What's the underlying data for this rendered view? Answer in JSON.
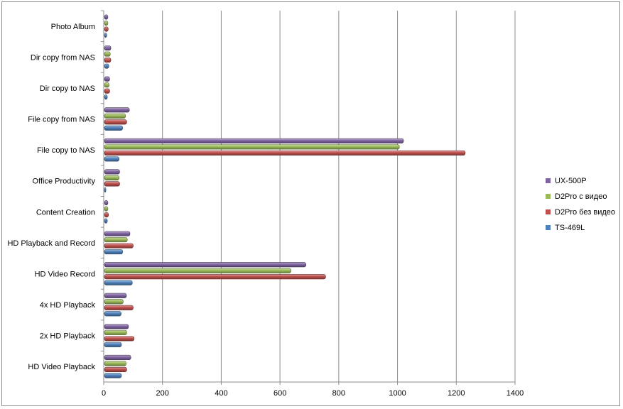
{
  "chart_data": {
    "type": "bar",
    "orientation": "horizontal",
    "categories": [
      "HD Video Playback",
      "2x HD Playback",
      "4x HD Playback",
      "HD Video Record",
      "HD Playback and Record",
      "Content Creation",
      "Office Productivity",
      "File copy to NAS",
      "File copy from NAS",
      "Dir copy to NAS",
      "Dir copy from NAS",
      "Photo Album"
    ],
    "series": [
      {
        "name": "TS-469L",
        "color": "#4f81bd",
        "values": [
          58,
          58,
          57,
          95,
          62,
          10,
          5,
          50,
          62,
          10,
          15,
          8
        ]
      },
      {
        "name": "D2Pro без видео",
        "color": "#c0504d",
        "values": [
          76,
          101,
          98,
          753,
          98,
          14,
          52,
          1228,
          76,
          18,
          22,
          13
        ]
      },
      {
        "name": "D2Pro с видео",
        "color": "#9bbb59",
        "values": [
          74,
          76,
          64,
          635,
          78,
          12,
          50,
          1004,
          72,
          16,
          20,
          12
        ]
      },
      {
        "name": "UX-500P",
        "color": "#8064a2",
        "values": [
          90,
          82,
          75,
          686,
          87,
          12,
          52,
          1018,
          85,
          18,
          22,
          12
        ]
      }
    ],
    "xlim": [
      0,
      1400
    ],
    "xticks": [
      "0",
      "200",
      "400",
      "600",
      "800",
      "1000",
      "1200",
      "1400"
    ],
    "grid": true,
    "legend_position": "right",
    "legend_order": [
      "UX-500P",
      "D2Pro с видео",
      "D2Pro без видео",
      "TS-469L"
    ]
  }
}
